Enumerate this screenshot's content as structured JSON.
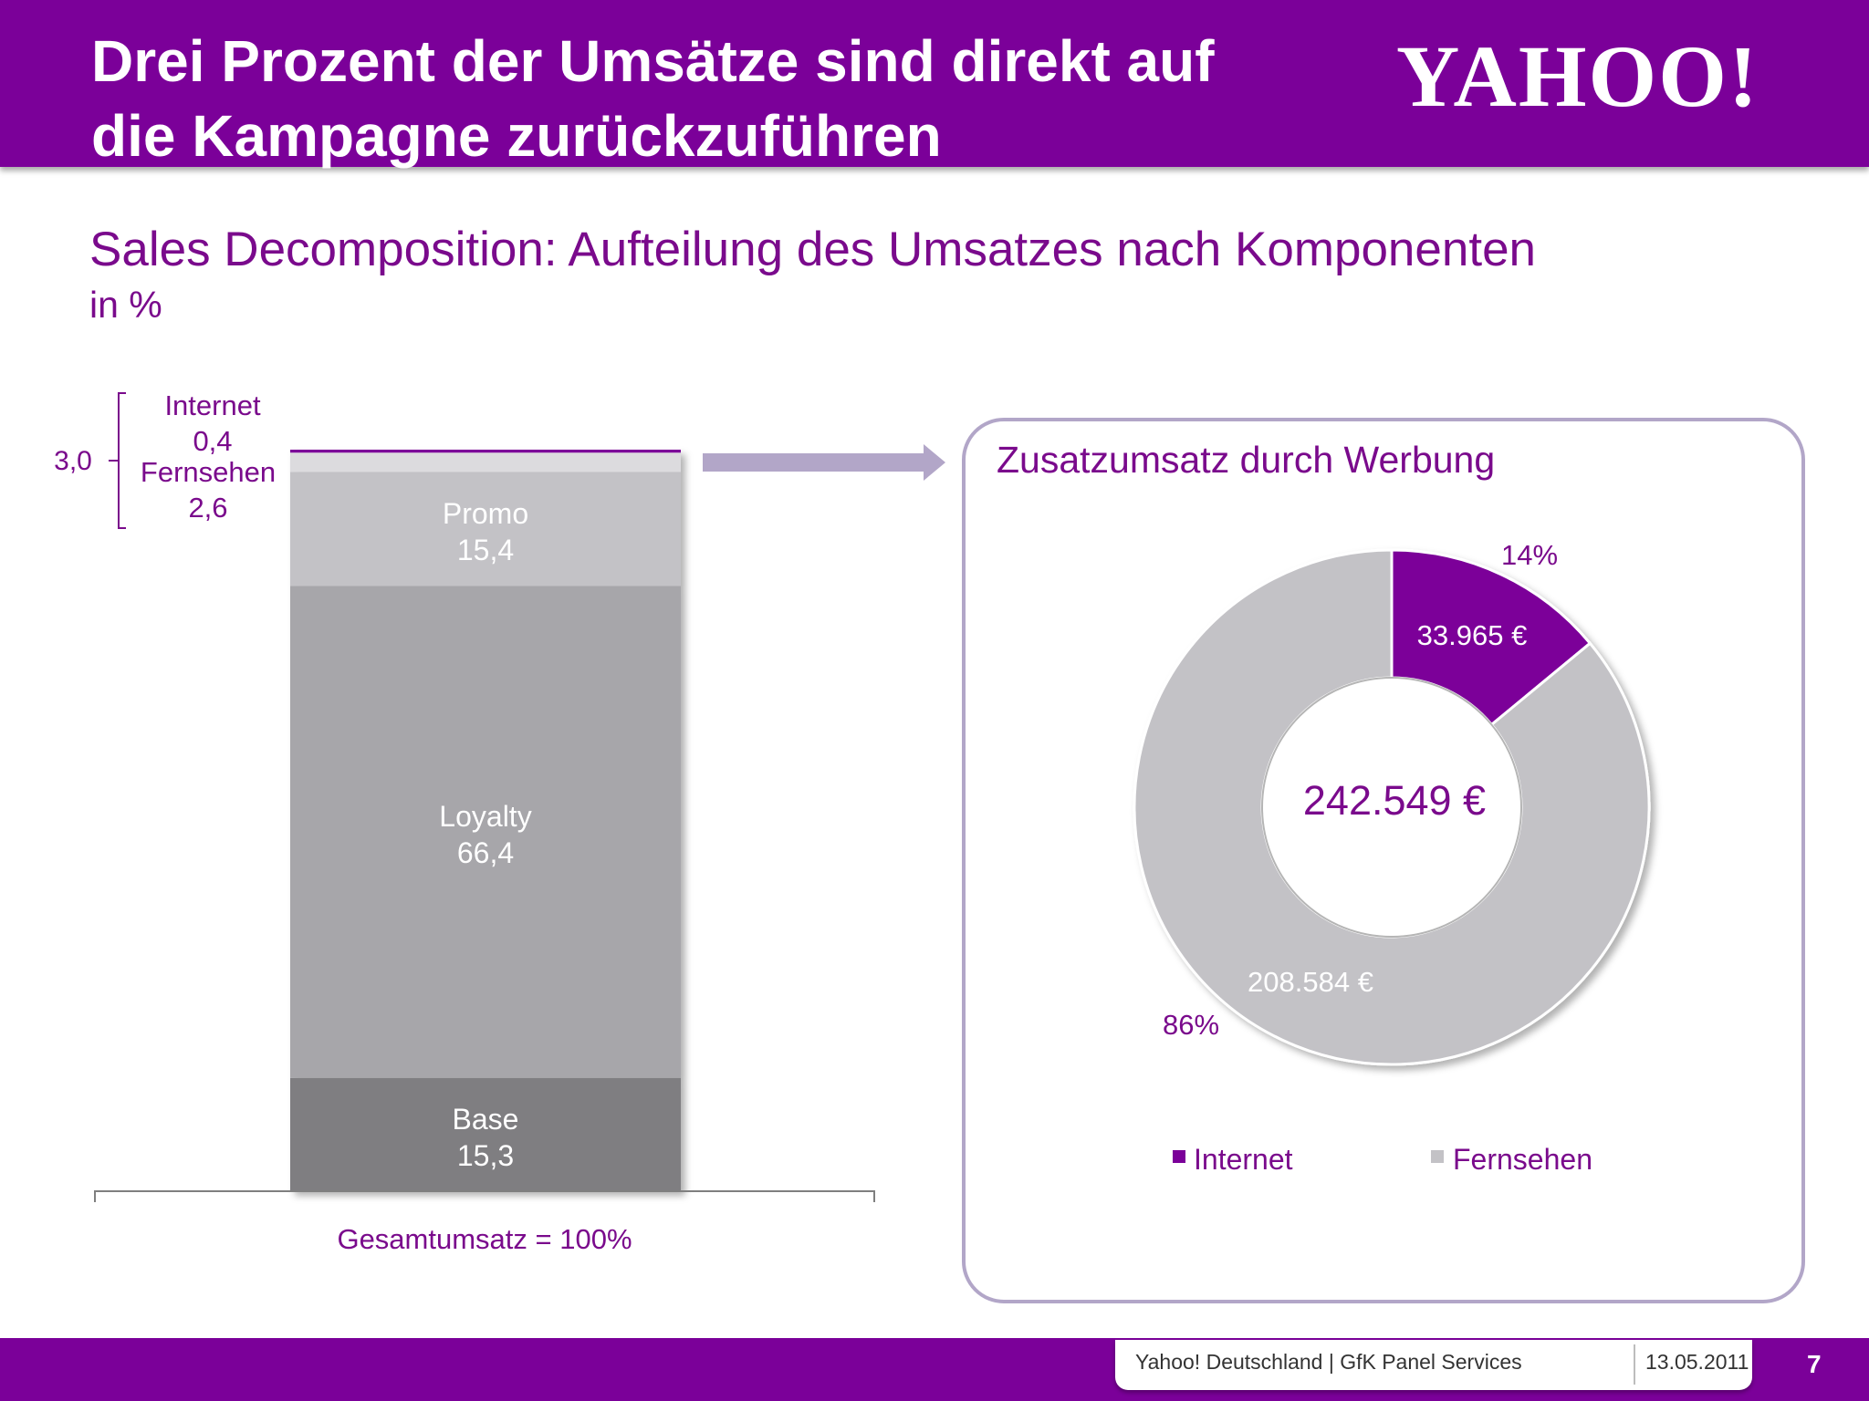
{
  "header": {
    "title_line1": "Drei Prozent der Umsätze sind direkt auf",
    "title_line2": "die Kampagne zurückzuführen",
    "logo": "YAHOO!"
  },
  "subtitle": "Sales Decomposition: Aufteilung des Umsatzes nach Komponenten",
  "unit": "in %",
  "chart_data": [
    {
      "type": "bar",
      "stacked": true,
      "categories": [
        "Gesamtumsatz = 100%"
      ],
      "series": [
        {
          "name": "Base",
          "value": 15.3,
          "label": "15,3",
          "color": "#7f7e81"
        },
        {
          "name": "Loyalty",
          "value": 66.4,
          "label": "66,4",
          "color": "#a7a6aa"
        },
        {
          "name": "Promo",
          "value": 15.4,
          "label": "15,4",
          "color": "#c3c2c6"
        },
        {
          "name": "Fernsehen",
          "value": 2.6,
          "label": "2,6",
          "color": "#dcdbde"
        },
        {
          "name": "Internet",
          "value": 0.4,
          "label": "0,4",
          "color": "#7b0099"
        }
      ],
      "bracket_total": {
        "label": "3,0",
        "value": 3.0
      },
      "xlabel": "Gesamtumsatz = 100%"
    },
    {
      "type": "pie",
      "donut": true,
      "title": "Zusatzumsatz durch Werbung",
      "center_label": "242.549 €",
      "slices": [
        {
          "name": "Internet",
          "value": 33965,
          "value_label": "33.965 €",
          "percent_label": "14%",
          "color": "#7b0099"
        },
        {
          "name": "Fernsehen",
          "value": 208584,
          "value_label": "208.584 €",
          "percent_label": "86%",
          "color": "#c3c2c6"
        }
      ],
      "legend_position": "bottom"
    }
  ],
  "footer": {
    "source": "Yahoo! Deutschland | GfK Panel Services",
    "date": "13.05.2011",
    "page": "7"
  }
}
